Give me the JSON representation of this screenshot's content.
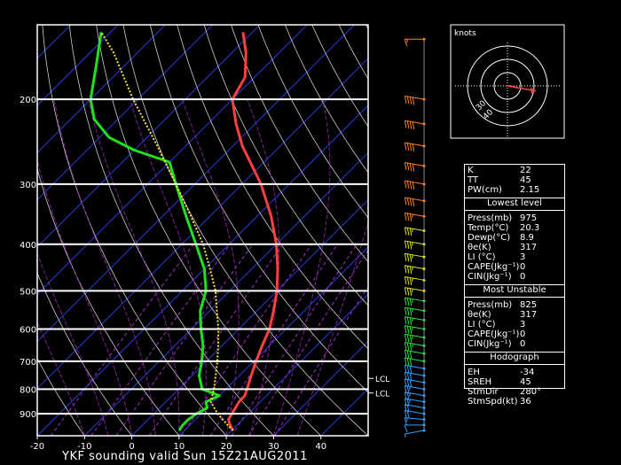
{
  "title": "YKF sounding valid Sun 15Z21AUG2011",
  "chart_data": {
    "type": "line",
    "title": "YKF sounding valid Sun 15Z21AUG2011",
    "x_axis": {
      "label": "",
      "range": [
        -20,
        50
      ],
      "ticks": [
        -20,
        -10,
        0,
        10,
        20,
        30,
        40
      ]
    },
    "y_axis": {
      "label": "",
      "scale": "log-pressure",
      "range": [
        1000,
        140
      ],
      "ticks": [
        200,
        300,
        400,
        500,
        600,
        700,
        800,
        900
      ]
    },
    "series": [
      {
        "key": "temperature",
        "color": "#ff4040",
        "points": [
          [
            975,
            20.3
          ],
          [
            950,
            18.5
          ],
          [
            925,
            17
          ],
          [
            900,
            16.5
          ],
          [
            850,
            15.5
          ],
          [
            825,
            15.4
          ],
          [
            800,
            14.5
          ],
          [
            750,
            12.5
          ],
          [
            700,
            10.5
          ],
          [
            650,
            8.5
          ],
          [
            600,
            6.5
          ],
          [
            550,
            3.5
          ],
          [
            500,
            0
          ],
          [
            450,
            -4.5
          ],
          [
            400,
            -10
          ],
          [
            350,
            -17
          ],
          [
            300,
            -26
          ],
          [
            250,
            -38
          ],
          [
            225,
            -44
          ],
          [
            200,
            -50
          ],
          [
            180,
            -52
          ],
          [
            160,
            -57
          ],
          [
            145,
            -62
          ]
        ]
      },
      {
        "key": "dewpoint",
        "color": "#20e020",
        "points": [
          [
            975,
            8.9
          ],
          [
            950,
            8.5
          ],
          [
            925,
            8.5
          ],
          [
            900,
            9
          ],
          [
            875,
            10
          ],
          [
            850,
            8.5
          ],
          [
            825,
            10
          ],
          [
            800,
            5
          ],
          [
            750,
            1.5
          ],
          [
            700,
            -1
          ],
          [
            650,
            -4
          ],
          [
            600,
            -8
          ],
          [
            550,
            -12
          ],
          [
            500,
            -15
          ],
          [
            450,
            -20
          ],
          [
            400,
            -27
          ],
          [
            350,
            -35
          ],
          [
            300,
            -44
          ],
          [
            270,
            -50
          ],
          [
            255,
            -60
          ],
          [
            240,
            -68
          ],
          [
            220,
            -75
          ],
          [
            200,
            -80
          ],
          [
            170,
            -86
          ],
          [
            145,
            -92
          ]
        ]
      },
      {
        "key": "parcel",
        "color": "#ffe040",
        "dashed": true,
        "points": [
          [
            975,
            20.3
          ],
          [
            950,
            18
          ],
          [
            900,
            13.5
          ],
          [
            850,
            9.5
          ],
          [
            825,
            8.5
          ],
          [
            800,
            7.5
          ],
          [
            750,
            5
          ],
          [
            700,
            2.3
          ],
          [
            650,
            -0.8
          ],
          [
            600,
            -4.3
          ],
          [
            550,
            -8.5
          ],
          [
            500,
            -13
          ],
          [
            450,
            -18.8
          ],
          [
            400,
            -25.5
          ],
          [
            350,
            -34
          ],
          [
            300,
            -44
          ],
          [
            250,
            -56
          ],
          [
            200,
            -71
          ],
          [
            160,
            -85
          ],
          [
            145,
            -92
          ]
        ]
      }
    ],
    "lcl_levels": [
      {
        "pressure": 760,
        "label": "LCL"
      },
      {
        "pressure": 815,
        "label": "LCL"
      }
    ],
    "winds": [
      {
        "p": 975,
        "dir": 260,
        "spd": 5
      },
      {
        "p": 950,
        "dir": 270,
        "spd": 10
      },
      {
        "p": 925,
        "dir": 275,
        "spd": 15
      },
      {
        "p": 900,
        "dir": 280,
        "spd": 20
      },
      {
        "p": 875,
        "dir": 280,
        "spd": 20
      },
      {
        "p": 850,
        "dir": 280,
        "spd": 25
      },
      {
        "p": 825,
        "dir": 280,
        "spd": 25
      },
      {
        "p": 800,
        "dir": 280,
        "spd": 25
      },
      {
        "p": 775,
        "dir": 280,
        "spd": 30
      },
      {
        "p": 750,
        "dir": 280,
        "spd": 30
      },
      {
        "p": 725,
        "dir": 280,
        "spd": 30
      },
      {
        "p": 700,
        "dir": 280,
        "spd": 30
      },
      {
        "p": 675,
        "dir": 280,
        "spd": 30
      },
      {
        "p": 650,
        "dir": 280,
        "spd": 35
      },
      {
        "p": 625,
        "dir": 280,
        "spd": 35
      },
      {
        "p": 600,
        "dir": 280,
        "spd": 35
      },
      {
        "p": 575,
        "dir": 280,
        "spd": 35
      },
      {
        "p": 550,
        "dir": 280,
        "spd": 35
      },
      {
        "p": 525,
        "dir": 280,
        "spd": 35
      },
      {
        "p": 500,
        "dir": 280,
        "spd": 35
      },
      {
        "p": 475,
        "dir": 280,
        "spd": 35
      },
      {
        "p": 450,
        "dir": 280,
        "spd": 35
      },
      {
        "p": 425,
        "dir": 280,
        "spd": 35
      },
      {
        "p": 400,
        "dir": 280,
        "spd": 35
      },
      {
        "p": 375,
        "dir": 280,
        "spd": 35
      },
      {
        "p": 350,
        "dir": 280,
        "spd": 35
      },
      {
        "p": 325,
        "dir": 280,
        "spd": 40
      },
      {
        "p": 300,
        "dir": 280,
        "spd": 40
      },
      {
        "p": 275,
        "dir": 280,
        "spd": 40
      },
      {
        "p": 250,
        "dir": 280,
        "spd": 40
      },
      {
        "p": 225,
        "dir": 280,
        "spd": 40
      },
      {
        "p": 200,
        "dir": 280,
        "spd": 40
      },
      {
        "p": 150,
        "dir": 270,
        "spd": 15
      }
    ]
  },
  "hodograph": {
    "label": "knots",
    "ring_labels": [
      "40",
      "30"
    ],
    "storm_motion": {
      "dir": 280,
      "spd": 36
    }
  },
  "indices": {
    "top": [
      {
        "k": "K",
        "v": "22"
      },
      {
        "k": "TT",
        "v": "45"
      },
      {
        "k": "PW(cm)",
        "v": "2.15"
      }
    ],
    "lowest_header": "Lowest level",
    "lowest": [
      {
        "k": "Press(mb)",
        "v": "975"
      },
      {
        "k": "Temp(°C)",
        "v": "20.3"
      },
      {
        "k": "Dewp(°C)",
        "v": "8.9"
      },
      {
        "k": "θe(K)",
        "v": "317"
      },
      {
        "k": "LI (°C)",
        "v": "3"
      },
      {
        "k": "CAPE(Jkg⁻¹)",
        "v": "0"
      },
      {
        "k": "CIN(Jkg⁻¹)",
        "v": "0"
      }
    ],
    "unstable_header": "Most Unstable",
    "unstable": [
      {
        "k": "Press(mb)",
        "v": "825"
      },
      {
        "k": "θe(K)",
        "v": "317"
      },
      {
        "k": "LI (°C)",
        "v": "3"
      },
      {
        "k": "CAPE(Jkg⁻¹)",
        "v": "0"
      },
      {
        "k": "CIN(Jkg⁻¹)",
        "v": "0"
      }
    ],
    "hodo_header": "Hodograph",
    "hodo": [
      {
        "k": "EH",
        "v": "-34"
      },
      {
        "k": "SREH",
        "v": "45"
      },
      {
        "k": "StmDir",
        "v": "280°"
      },
      {
        "k": "StmSpd(kt)",
        "v": "36"
      }
    ]
  }
}
